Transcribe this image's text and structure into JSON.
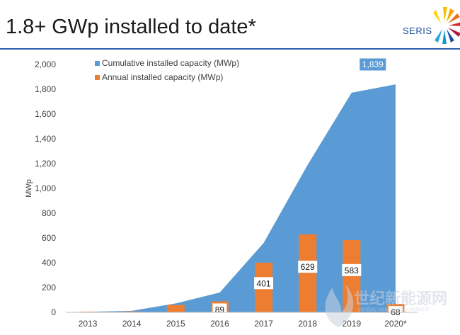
{
  "header": {
    "title": "1.8+ GWp installed to date*",
    "logo_text": "SERIS"
  },
  "watermark": {
    "text": "世纪新能源网",
    "subtext": "century new energy network"
  },
  "colors": {
    "cumulative": "#5b9bd5",
    "annual": "#ed7d31",
    "rule": "#2b5fad",
    "text": "#404040"
  },
  "chart_data": {
    "type": "area",
    "categories": [
      "2013",
      "2014",
      "2015",
      "2016",
      "2017",
      "2018",
      "2019",
      "2020*"
    ],
    "ylabel": "MWp",
    "ylim": [
      0,
      2000
    ],
    "yticks": [
      "0",
      "200",
      "400",
      "600",
      "800",
      "1,000",
      "1,200",
      "1,400",
      "1,600",
      "1,800",
      "2,000"
    ],
    "legend_position": "top-left",
    "grid": false,
    "series": [
      {
        "name": "Cumulative installed capacity (MWp)",
        "type": "area",
        "values": [
          5,
          12,
          72,
          160,
          560,
          1190,
          1772,
          1839
        ],
        "end_label": "1,839"
      },
      {
        "name": "Annual installed capacity (MWp)",
        "type": "bar",
        "values": [
          5,
          7,
          60,
          89,
          401,
          629,
          583,
          68
        ],
        "data_labels": [
          "",
          "",
          "",
          "89",
          "401",
          "629",
          "583",
          "68"
        ]
      }
    ]
  }
}
